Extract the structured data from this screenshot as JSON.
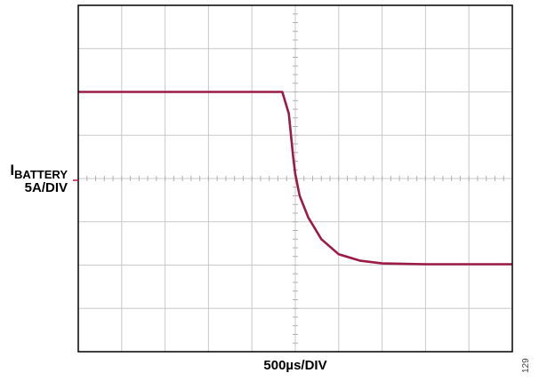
{
  "chart_data": {
    "type": "line",
    "title": "",
    "xlabel": "500µs/DIV",
    "ylabel_main": "I",
    "ylabel_sub": "BATTERY",
    "ylabel_scale": "5A/DIV",
    "x_divisions": 10,
    "y_divisions": 8,
    "xlim": [
      0,
      10
    ],
    "ylim": [
      -4,
      4
    ],
    "units": "divisions",
    "grid": true,
    "trace_color": "#9b1b46",
    "ground_marker_color": "#c0133a",
    "series": [
      {
        "x": [
          0,
          1,
          2,
          3,
          4,
          4.7,
          4.85,
          4.95,
          5.0,
          5.1,
          5.3,
          5.6,
          6.0,
          6.5,
          7.0,
          8.0,
          9.0,
          10.0
        ],
        "y": [
          2.0,
          2.0,
          2.0,
          2.0,
          2.0,
          2.0,
          1.5,
          0.5,
          0.1,
          -0.4,
          -0.9,
          -1.4,
          -1.75,
          -1.9,
          -1.96,
          -1.98,
          -1.98,
          -1.98
        ]
      }
    ]
  },
  "figure_id": "129"
}
